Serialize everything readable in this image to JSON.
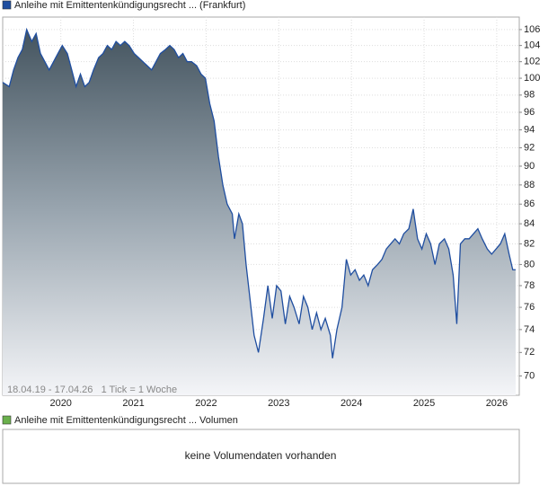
{
  "chart_data": {
    "type": "area",
    "log_scale": true,
    "grid": true,
    "annotation": "18.04.19 - 17.04.26   1 Tick = 1 Woche",
    "xlim": [
      2019.2,
      2026.31
    ],
    "xticks": [
      2020,
      2021,
      2022,
      2023,
      2024,
      2025,
      2026
    ],
    "ylim": [
      68.4,
      107.6
    ],
    "yticks": [
      70,
      72,
      74,
      76,
      78,
      80,
      82,
      84,
      86,
      88,
      90,
      92,
      94,
      96,
      98,
      100,
      102,
      104,
      106
    ],
    "series": [
      {
        "name": "Anleihe mit Emittentenkündigungsrecht ... (Frankfurt)",
        "color": "#1f4ea0",
        "x": [
          2019.2,
          2019.29,
          2019.35,
          2019.41,
          2019.47,
          2019.53,
          2019.6,
          2019.66,
          2019.72,
          2019.78,
          2019.84,
          2019.9,
          2019.96,
          2020.02,
          2020.09,
          2020.15,
          2020.21,
          2020.27,
          2020.33,
          2020.39,
          2020.45,
          2020.52,
          2020.58,
          2020.64,
          2020.7,
          2020.76,
          2020.82,
          2020.88,
          2020.94,
          2021.01,
          2021.07,
          2021.13,
          2021.19,
          2021.25,
          2021.31,
          2021.37,
          2021.44,
          2021.5,
          2021.56,
          2021.62,
          2021.68,
          2021.74,
          2021.8,
          2021.87,
          2021.93,
          2021.99,
          2022.05,
          2022.11,
          2022.17,
          2022.23,
          2022.29,
          2022.36,
          2022.39,
          2022.45,
          2022.5,
          2022.55,
          2022.6,
          2022.66,
          2022.72,
          2022.79,
          2022.85,
          2022.91,
          2022.97,
          2023.03,
          2023.09,
          2023.15,
          2023.21,
          2023.28,
          2023.34,
          2023.4,
          2023.46,
          2023.52,
          2023.58,
          2023.64,
          2023.71,
          2023.74,
          2023.8,
          2023.87,
          2023.93,
          2023.99,
          2024.05,
          2024.11,
          2024.17,
          2024.23,
          2024.29,
          2024.36,
          2024.42,
          2024.48,
          2024.54,
          2024.6,
          2024.66,
          2024.72,
          2024.79,
          2024.85,
          2024.91,
          2024.97,
          2025.03,
          2025.09,
          2025.15,
          2025.21,
          2025.28,
          2025.34,
          2025.4,
          2025.45,
          2025.5,
          2025.56,
          2025.62,
          2025.68,
          2025.74,
          2025.8,
          2025.87,
          2025.93,
          2025.99,
          2026.05,
          2026.11,
          2026.17,
          2026.22,
          2026.26
        ],
        "values": [
          99.5,
          99,
          101,
          102.5,
          103.5,
          106,
          104.5,
          105.5,
          103,
          102,
          101,
          102,
          103,
          104,
          103,
          101,
          99,
          100.5,
          99,
          99.5,
          101,
          102.5,
          103,
          104,
          103.5,
          104.5,
          104,
          104.5,
          104,
          103,
          102.5,
          102,
          101.5,
          101,
          102,
          103,
          103.5,
          104,
          103.5,
          102.5,
          103,
          102,
          102,
          101.5,
          100.5,
          100,
          97,
          95,
          91,
          88,
          86,
          85,
          82.5,
          85,
          84,
          80,
          77,
          73.5,
          72,
          75,
          78,
          75,
          78,
          77.5,
          74.5,
          77,
          76,
          74.5,
          77,
          76,
          74,
          75.5,
          74,
          75,
          73.5,
          71.5,
          74,
          76,
          80.5,
          79,
          79.5,
          78.5,
          79,
          78,
          79.5,
          80,
          80.5,
          81.5,
          82,
          82.5,
          82,
          83,
          83.5,
          85.5,
          82.5,
          81.5,
          83,
          82,
          80,
          82,
          82.5,
          81.5,
          79,
          74.5,
          82,
          82.5,
          82.5,
          83,
          83.5,
          82.5,
          81.5,
          81,
          81.5,
          82,
          83,
          81,
          79.5,
          79.5
        ]
      }
    ]
  },
  "volume_panel": {
    "legend": "Anleihe mit Emittentenkündigungsrecht ... Volumen",
    "color": "#6ab04c",
    "message": "keine Volumendaten vorhanden"
  }
}
